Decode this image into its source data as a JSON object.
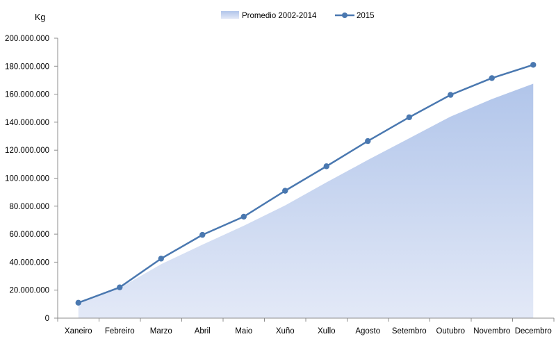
{
  "chart_data": {
    "type": "area",
    "unit_label": "Kg",
    "categories": [
      "Xaneiro",
      "Febreiro",
      "Marzo",
      "Abril",
      "Maio",
      "Xuño",
      "Xullo",
      "Agosto",
      "Setembro",
      "Outubro",
      "Novembro",
      "Decembro"
    ],
    "ylim": [
      0,
      200000000
    ],
    "y_ticks": [
      0,
      20000000,
      40000000,
      60000000,
      80000000,
      100000000,
      120000000,
      140000000,
      160000000,
      180000000,
      200000000
    ],
    "y_tick_labels": [
      "0",
      "20.000.000",
      "40.000.000",
      "60.000.000",
      "80.000.000",
      "100.000.000",
      "120.000.000",
      "140.000.000",
      "160.000.000",
      "180.000.000",
      "200.000.000"
    ],
    "grid": false,
    "legend_position": "top",
    "series": [
      {
        "name": "Promedio 2002-2014",
        "type": "area",
        "color": "#b7c9ec",
        "values": [
          10500000,
          21500000,
          38500000,
          52500000,
          66000000,
          80500000,
          97000000,
          113000000,
          128500000,
          144000000,
          156500000,
          167500000
        ]
      },
      {
        "name": "2015",
        "type": "line",
        "color": "#4a78b0",
        "values": [
          11000000,
          22000000,
          42500000,
          59500000,
          72500000,
          91000000,
          108500000,
          126500000,
          143500000,
          159500000,
          171500000,
          181000000
        ]
      }
    ]
  }
}
